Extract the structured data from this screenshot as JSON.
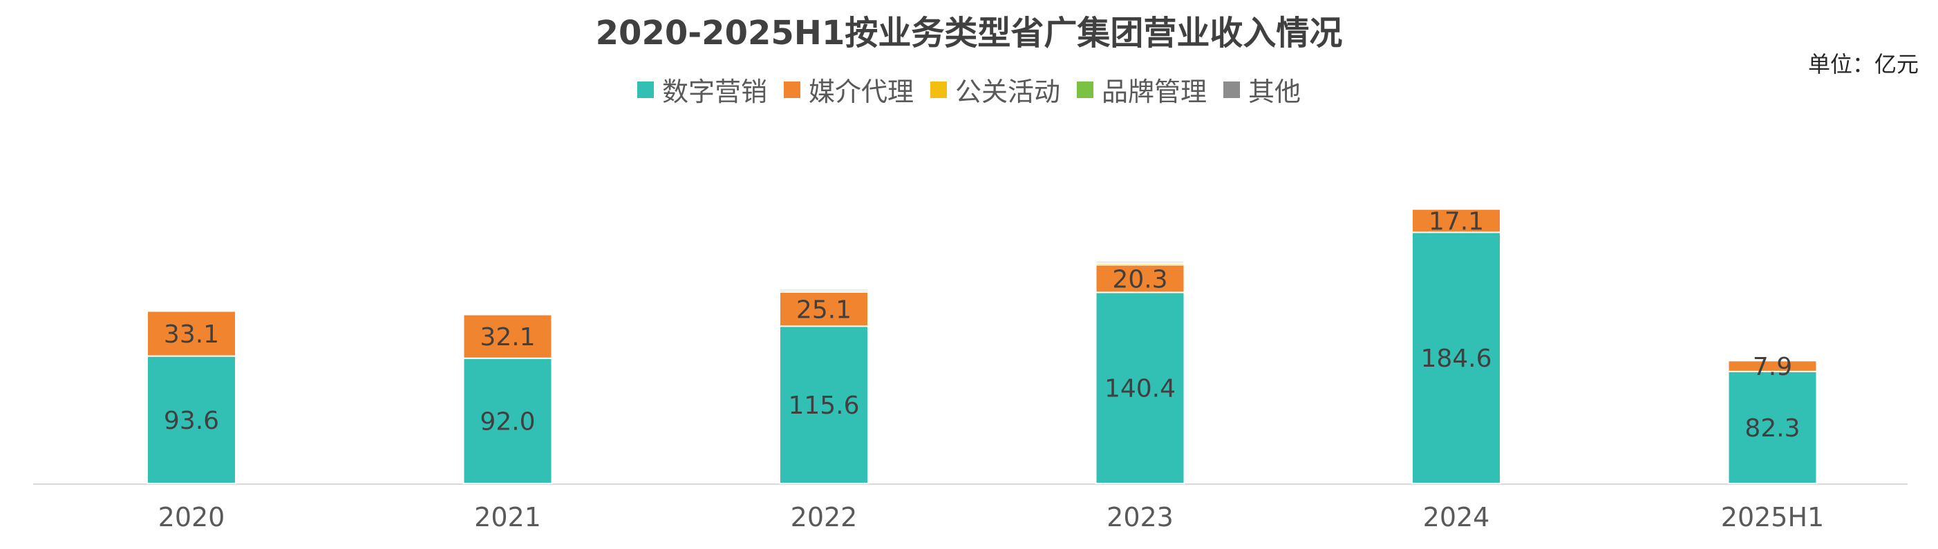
{
  "chart_data": {
    "type": "bar",
    "stacked": true,
    "title": "2020-2025H1按业务类型省广集团营业收入情况",
    "unit": "单位：亿元",
    "legend_position": "top",
    "grid": false,
    "categories": [
      "2020",
      "2021",
      "2022",
      "2023",
      "2024",
      "2025H1"
    ],
    "series": [
      {
        "name": "数字营销",
        "color": "#33C0B4",
        "values": [
          93.6,
          92.0,
          115.6,
          140.4,
          184.6,
          82.3
        ],
        "labels": [
          "93.6",
          "92.0",
          "115.6",
          "140.4",
          "184.6",
          "82.3"
        ]
      },
      {
        "name": "媒介代理",
        "color": "#F0842F",
        "values": [
          33.1,
          32.1,
          25.1,
          20.3,
          17.1,
          7.9
        ],
        "labels": [
          "33.1",
          "32.1",
          "25.1",
          "20.3",
          "17.1",
          "7.9"
        ]
      },
      {
        "name": "公关活动",
        "color": "#F2BE0F",
        "values": [
          1.0,
          0.9,
          1.3,
          1.3,
          0.7,
          0
        ],
        "labels": []
      },
      {
        "name": "品牌管理",
        "color": "#7BC143",
        "values": [
          1.0,
          0.8,
          1.2,
          1.2,
          0.8,
          0
        ],
        "labels": []
      },
      {
        "name": "其他",
        "color": "#8C8C8C",
        "values": [
          0.5,
          0.5,
          0.4,
          0.3,
          0.3,
          0
        ],
        "labels": []
      }
    ],
    "ylim": [
      0,
      215
    ]
  }
}
